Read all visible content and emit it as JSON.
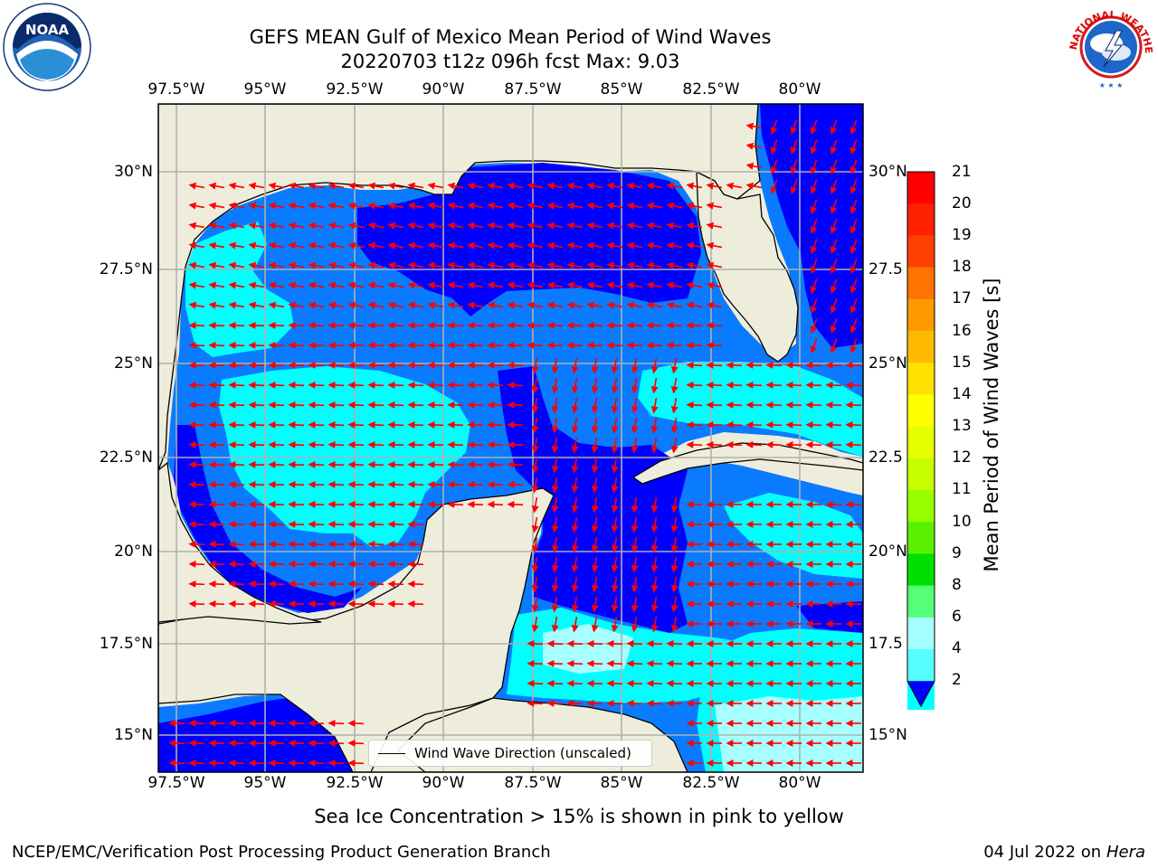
{
  "title": {
    "line1": "GEFS MEAN Gulf of Mexico Mean Period of Wind Waves",
    "line2": "20220703 t12z 096h fcst   Max: 9.03"
  },
  "map": {
    "lon_ticks": [
      "97.5°W",
      "95°W",
      "92.5°W",
      "90°W",
      "87.5°W",
      "85°W",
      "82.5°W",
      "80°W"
    ],
    "lat_ticks_left": [
      "30°N",
      "27.5°N",
      "25°N",
      "22.5°N",
      "20°N",
      "17.5°N",
      "15°N"
    ],
    "lat_ticks_right": [
      "30°N",
      "27.5",
      "25°N",
      "22.5",
      "20°N",
      "17.5",
      "15°N"
    ],
    "legend_label": "Wind Wave Direction (unscaled)",
    "colors": {
      "land": "#eeeddc",
      "deep": "#0000ff",
      "mid": "#0a7bff",
      "light": "#00ffff",
      "pale": "#a8ffff",
      "arrow": "#ff0000"
    }
  },
  "colorbar": {
    "label": "Mean Period of Wind Waves [s]",
    "ticks": [
      "21",
      "20",
      "19",
      "18",
      "17",
      "16",
      "15",
      "14",
      "13",
      "12",
      "11",
      "10",
      "9",
      "8",
      "6",
      "4",
      "2"
    ],
    "colors": [
      "#ff0000",
      "#ff2000",
      "#ff4000",
      "#ff7400",
      "#ff9900",
      "#ffbb00",
      "#ffe000",
      "#ffff00",
      "#e8ff00",
      "#c8ff00",
      "#96ff00",
      "#5af000",
      "#00e000",
      "#55ff77",
      "#a6ffff",
      "#55ffff",
      "#00ffff",
      "#0080ff"
    ]
  },
  "note": "Sea Ice Concentration > 15% is shown in pink to yellow",
  "footer": {
    "left": "NCEP/EMC/Verification Post Processing Product Generation Branch",
    "right_date": "04 Jul 2022 on ",
    "right_machine": "Hera"
  },
  "logos": {
    "noaa": "NOAA",
    "nws": "NATIONAL WEATHER SERVICE"
  }
}
